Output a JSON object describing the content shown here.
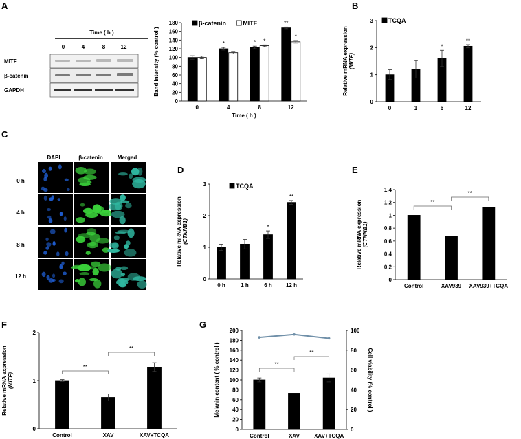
{
  "panels": {
    "A": "A",
    "B": "B",
    "C": "C",
    "D": "D",
    "E": "E",
    "F": "F",
    "G": "G"
  },
  "blot": {
    "time_header": "Time ( h )",
    "times": [
      "0",
      "4",
      "8",
      "12"
    ],
    "rows": [
      "MITF",
      "β-catenin",
      "GAPDH"
    ]
  },
  "micro": {
    "columns": [
      "DAPI",
      "β-catenin",
      "Merged"
    ],
    "rows": [
      "0 h",
      "4 h",
      "8 h",
      "12 h"
    ],
    "colors": {
      "dapi": "#1f5fd6",
      "catenin": "#3ad13a",
      "merged": "#2fb7a0",
      "bg": "#000000"
    }
  },
  "chart_data": [
    {
      "id": "A",
      "type": "bar",
      "categories": [
        "0",
        "4",
        "8",
        "12"
      ],
      "series": [
        {
          "name": "β-catenin",
          "values": [
            100,
            120,
            123,
            168
          ],
          "errors": [
            4,
            3,
            3,
            2
          ],
          "stars": [
            "",
            "*",
            "*",
            "**"
          ],
          "color": "#000000"
        },
        {
          "name": "MITF",
          "values": [
            100,
            111,
            127,
            136
          ],
          "errors": [
            3,
            3,
            2,
            3
          ],
          "stars": [
            "",
            "",
            "*",
            "*"
          ],
          "color": "#ffffff"
        }
      ],
      "ylim": [
        0,
        180
      ],
      "yticks": [
        0,
        20,
        40,
        60,
        80,
        100,
        120,
        140,
        160,
        180
      ],
      "ylabel": "Band intensity (% control )",
      "xlabel": "Time ( h )",
      "legend": "top"
    },
    {
      "id": "B",
      "type": "bar",
      "categories": [
        "0",
        "1",
        "6",
        "12"
      ],
      "series": [
        {
          "name": "TCQA",
          "values": [
            1.0,
            1.2,
            1.6,
            2.05
          ],
          "errors": [
            0.18,
            0.32,
            0.3,
            0.06
          ],
          "stars": [
            "",
            "",
            "*",
            "**"
          ],
          "color": "#000000"
        }
      ],
      "ylim": [
        0,
        3
      ],
      "yticks": [
        0,
        1,
        2,
        3
      ],
      "ylabel": "Relative mRNA expression",
      "ylabel2": "(MITF)",
      "legend": "top-left"
    },
    {
      "id": "D",
      "type": "bar",
      "categories": [
        "0 h",
        "1 h",
        "6 h",
        "12 h"
      ],
      "series": [
        {
          "name": "TCQA",
          "values": [
            1.0,
            1.1,
            1.4,
            2.42
          ],
          "errors": [
            0.1,
            0.15,
            0.12,
            0.06
          ],
          "stars": [
            "",
            "",
            "*",
            "**"
          ],
          "color": "#000000"
        }
      ],
      "ylim": [
        0,
        3
      ],
      "yticks": [
        0,
        1,
        2,
        3
      ],
      "ylabel": "Relative mRNA expression",
      "ylabel2": "(CTNNB1)",
      "legend": "top-right"
    },
    {
      "id": "E",
      "type": "bar",
      "categories": [
        "Control",
        "XAV939",
        "XAV939+TCQA"
      ],
      "series": [
        {
          "values": [
            1.0,
            0.67,
            1.12
          ],
          "errors": [
            0,
            0,
            0
          ],
          "color": "#000000"
        }
      ],
      "ylim": [
        0,
        1.4
      ],
      "yticks": [
        "0",
        "0,2",
        "0,4",
        "0,6",
        "0,8",
        "1",
        "1,2",
        "1,4"
      ],
      "ylabel": "Relative mRNA expression",
      "ylabel2": "(CTNNB1)",
      "brackets": [
        {
          "from": 0,
          "to": 1,
          "label": "**"
        },
        {
          "from": 1,
          "to": 2,
          "label": "**"
        }
      ]
    },
    {
      "id": "F",
      "type": "bar",
      "categories": [
        "Control",
        "XAV",
        "XAV+TCQA"
      ],
      "series": [
        {
          "values": [
            1.0,
            0.65,
            1.28
          ],
          "errors": [
            0.02,
            0.07,
            0.09
          ],
          "color": "#000000"
        }
      ],
      "ylim": [
        0,
        2
      ],
      "yticks": [
        0,
        1,
        2
      ],
      "ylabel": "Relative mRNA expression",
      "ylabel2": "(MITF)",
      "brackets": [
        {
          "from": 0,
          "to": 1,
          "label": "**"
        },
        {
          "from": 1,
          "to": 2,
          "label": "**"
        }
      ]
    },
    {
      "id": "G",
      "type": "bar+line",
      "categories": [
        "Control",
        "XAV",
        "XAV+TCQA"
      ],
      "series": [
        {
          "name": "Melanin content",
          "values": [
            100,
            73,
            104
          ],
          "errors": [
            4,
            0,
            8
          ],
          "color": "#000000"
        },
        {
          "name": "Cell viability",
          "type": "line",
          "values": [
            93,
            96,
            92
          ],
          "axis": "right",
          "color": "#6f8fa8"
        }
      ],
      "ylim": [
        0,
        200
      ],
      "yticks": [
        0,
        20,
        40,
        60,
        80,
        100,
        120,
        140,
        160,
        180,
        200
      ],
      "y2lim": [
        0,
        100
      ],
      "y2ticks": [
        0,
        20,
        40,
        60,
        80,
        100
      ],
      "ylabel": "Melanin content ( % control )",
      "y2label": "Cell viability (% control )",
      "brackets": [
        {
          "from": 0,
          "to": 1,
          "label": "**"
        },
        {
          "from": 1,
          "to": 2,
          "label": "**"
        }
      ]
    }
  ]
}
